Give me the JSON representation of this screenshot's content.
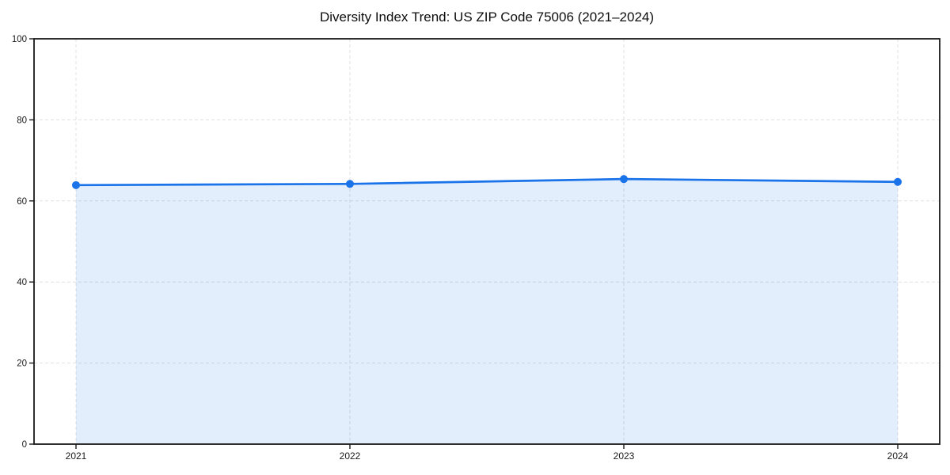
{
  "chart_data": {
    "type": "area",
    "title": "Diversity Index Trend: US ZIP Code 75006 (2021–2024)",
    "series_name": "Diversity Index",
    "x": [
      "2021",
      "2022",
      "2023",
      "2024"
    ],
    "values": [
      63.9,
      64.2,
      65.4,
      64.7
    ],
    "xlabel": "",
    "ylabel": "",
    "ylim": [
      0,
      100
    ],
    "yticks": [
      0,
      20,
      40,
      60,
      80,
      100
    ],
    "grid": "dashed horizontal and vertical",
    "legend_position": "none",
    "line_color": "#1a73e8",
    "marker_color": "#1a73e8",
    "fill_color": "#1a73e8",
    "fill_opacity": 0.12,
    "gridline_color": "#e0e0e0",
    "axis_color": "#1a1a1a",
    "tick_label_color": "#1a1a1a",
    "background_color": "#ffffff"
  }
}
